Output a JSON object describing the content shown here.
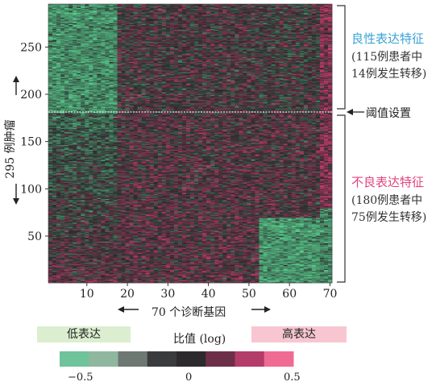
{
  "chart_data": {
    "type": "heatmap",
    "title": "",
    "x_axis": {
      "label": "70 个诊断基因",
      "range": [
        1,
        70
      ],
      "ticks": [
        10,
        20,
        30,
        40,
        50,
        60,
        70
      ]
    },
    "y_axis": {
      "label": "295 例肿瘤",
      "range": [
        1,
        295
      ],
      "ticks": [
        50,
        100,
        150,
        200,
        250
      ]
    },
    "threshold": {
      "row": 180,
      "label": "阈值设置"
    },
    "groups": [
      {
        "name": "良性表达特征",
        "line1": "(115例患者中",
        "line2": "14例发生转移)",
        "rows": [
          181,
          295
        ],
        "color": "#3aa3d6"
      },
      {
        "name": "不良表达特征",
        "line1": "(180例患者中",
        "line2": "75例发生转移)",
        "rows": [
          1,
          180
        ],
        "color": "#e0457e"
      }
    ],
    "colorbar": {
      "label": "比值 (log)",
      "low_label": "低表达",
      "high_label": "高表达",
      "range": [
        -0.5,
        0.5
      ],
      "ticks": [
        "−0.5",
        "0",
        "0.5"
      ],
      "colors": [
        "#6fc39a",
        "#8fb7a0",
        "#6d7872",
        "#3a3b3d",
        "#2d2a2e",
        "#6d2f47",
        "#b43c6a",
        "#f06b93"
      ]
    },
    "colormap": {
      "low": "#57c98a",
      "mid": "#2a2a2d",
      "high": "#f4407c"
    }
  }
}
